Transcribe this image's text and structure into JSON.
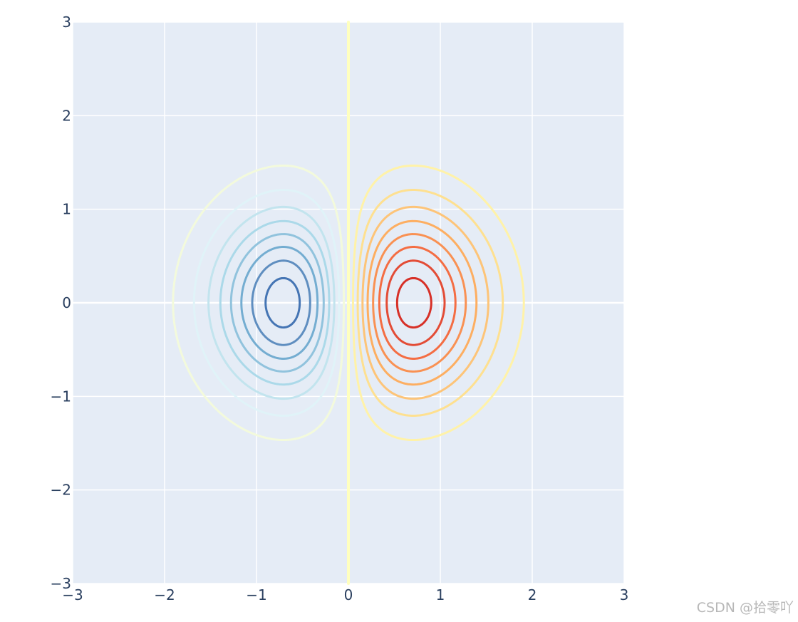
{
  "chart_data": {
    "type": "contour",
    "title": "",
    "xlabel": "",
    "ylabel": "",
    "xlim": [
      -3,
      3
    ],
    "ylim": [
      -3,
      3
    ],
    "x_ticks": [
      -3,
      -2,
      -1,
      0,
      1,
      2,
      3
    ],
    "y_ticks": [
      -3,
      -2,
      -1,
      0,
      1,
      2,
      3
    ],
    "x_tick_labels": [
      "−3",
      "−2",
      "−1",
      "0",
      "1",
      "2",
      "3"
    ],
    "y_tick_labels": [
      "−3",
      "−2",
      "−1",
      "0",
      "1",
      "2",
      "3"
    ],
    "grid": true,
    "function": "z = x * exp(-x^2 - y^2)",
    "colorscale": "RdYlBu reversed (blue = negative, red = positive)",
    "contour_levels": [
      {
        "level": -0.4,
        "color": "#4575b4"
      },
      {
        "level": -0.35,
        "color": "#5f8ec0"
      },
      {
        "level": -0.3,
        "color": "#74add1"
      },
      {
        "level": -0.25,
        "color": "#91c3dd"
      },
      {
        "level": -0.2,
        "color": "#abd9e9"
      },
      {
        "level": -0.15,
        "color": "#c2e4ee"
      },
      {
        "level": -0.1,
        "color": "#e0f3f8"
      },
      {
        "level": -0.05,
        "color": "#f3fadc"
      },
      {
        "level": 0.0,
        "color": "#ffffbf"
      },
      {
        "level": 0.05,
        "color": "#fff2a8"
      },
      {
        "level": 0.1,
        "color": "#fee090"
      },
      {
        "level": 0.15,
        "color": "#fdc478"
      },
      {
        "level": 0.2,
        "color": "#fdae61"
      },
      {
        "level": 0.25,
        "color": "#f99153"
      },
      {
        "level": 0.3,
        "color": "#f46d43"
      },
      {
        "level": 0.35,
        "color": "#e34c36"
      },
      {
        "level": 0.4,
        "color": "#d73027"
      }
    ]
  },
  "colors": {
    "plot_background": "#e5ecf6",
    "grid": "#ffffff",
    "tick_text": "#2a3f5f"
  },
  "watermark": "CSDN @拾零吖"
}
